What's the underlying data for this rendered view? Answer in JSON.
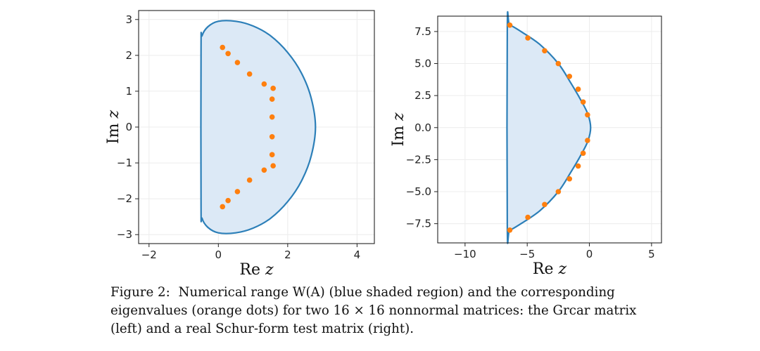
{
  "caption": {
    "label": "Figure 2:",
    "text": "Numerical range W(A) (blue shaded region) and the corresponding eigenvalues (orange dots) for two 16 × 16 nonnormal matrices: the Grcar matrix (left) and a real Schur-form test matrix (right)."
  },
  "colors": {
    "boundary": "#2c7fb8",
    "fill": "#dce9f6",
    "eigen": "#ff7f0e",
    "grid": "#ececec"
  },
  "chart_data": [
    {
      "type": "scatter",
      "title": "",
      "xlabel": "Re z",
      "ylabel": "Im z",
      "xlim": [
        -2.3,
        4.5
      ],
      "ylim": [
        -3.25,
        3.25
      ],
      "xticks": [
        -2,
        0,
        2,
        4
      ],
      "xtick_labels": [
        "−2",
        "0",
        "2",
        "4"
      ],
      "yticks": [
        -3,
        -2,
        -1,
        0,
        1,
        2,
        3
      ],
      "ytick_labels": [
        "−3",
        "−2",
        "−1",
        "0",
        "1",
        "2",
        "3"
      ],
      "grid": true,
      "series": [
        {
          "kind": "filled-boundary",
          "points": [
            [
              -0.5,
              2.2
            ],
            [
              -0.47,
              2.55
            ],
            [
              -0.3,
              2.8
            ],
            [
              0,
              2.95
            ],
            [
              0.5,
              2.95
            ],
            [
              1.0,
              2.82
            ],
            [
              1.5,
              2.55
            ],
            [
              2.0,
              2.08
            ],
            [
              2.4,
              1.5
            ],
            [
              2.68,
              0.8
            ],
            [
              2.8,
              0
            ],
            [
              2.68,
              -0.8
            ],
            [
              2.4,
              -1.5
            ],
            [
              2.0,
              -2.08
            ],
            [
              1.5,
              -2.55
            ],
            [
              1.0,
              -2.82
            ],
            [
              0.5,
              -2.95
            ],
            [
              0,
              -2.95
            ],
            [
              -0.3,
              -2.8
            ],
            [
              -0.47,
              -2.55
            ],
            [
              -0.5,
              -2.2
            ]
          ]
        },
        {
          "kind": "eigenvalues",
          "x": [
            0.12,
            0.28,
            0.55,
            0.9,
            1.32,
            1.58,
            1.55,
            1.55,
            1.55,
            1.55,
            1.58,
            1.32,
            0.9,
            0.55,
            0.28,
            0.12
          ],
          "y": [
            2.22,
            2.05,
            1.8,
            1.48,
            1.2,
            1.08,
            0.78,
            0.28,
            -0.27,
            -0.77,
            -1.08,
            -1.2,
            -1.48,
            -1.8,
            -2.05,
            -2.22
          ]
        }
      ]
    },
    {
      "type": "scatter",
      "title": "",
      "xlabel": "Re z",
      "ylabel": "Im z",
      "xlim": [
        -12.2,
        5.8
      ],
      "ylim": [
        -9.0,
        8.7
      ],
      "xticks": [
        -10,
        -5,
        0,
        5
      ],
      "xtick_labels": [
        "−10",
        "−5",
        "0",
        "5"
      ],
      "yticks": [
        -7.5,
        -5.0,
        -2.5,
        0.0,
        2.5,
        5.0,
        7.5
      ],
      "ytick_labels": [
        "−7.5",
        "−5.0",
        "−2.5",
        "0.0",
        "2.5",
        "5.0",
        "7.5"
      ],
      "grid": true,
      "series": [
        {
          "kind": "filled-boundary",
          "points": [
            [
              -6.4,
              8.0
            ],
            [
              -6.6,
              7.8
            ],
            [
              -6.6,
              -7.8
            ],
            [
              -6.4,
              -8.0
            ],
            [
              -5.5,
              -7.5
            ],
            [
              -4.0,
              -6.5
            ],
            [
              -2.5,
              -5.0
            ],
            [
              -1.5,
              -3.5
            ],
            [
              -0.6,
              -2.0
            ],
            [
              -0.1,
              -1.0
            ],
            [
              0.1,
              0
            ],
            [
              -0.1,
              1.0
            ],
            [
              -0.6,
              2.0
            ],
            [
              -1.5,
              3.5
            ],
            [
              -2.5,
              5.0
            ],
            [
              -4.0,
              6.5
            ],
            [
              -5.5,
              7.5
            ]
          ]
        },
        {
          "kind": "eigenvalues",
          "x": [
            -6.4,
            -4.95,
            -3.6,
            -2.5,
            -1.6,
            -0.9,
            -0.5,
            -0.15,
            -0.15,
            -0.5,
            -0.9,
            -1.6,
            -2.5,
            -3.6,
            -4.95,
            -6.4
          ],
          "y": [
            8.0,
            7.0,
            6.0,
            5.0,
            4.0,
            3.0,
            2.0,
            1.0,
            -1.0,
            -2.0,
            -3.0,
            -4.0,
            -5.0,
            -6.0,
            -7.0,
            -8.0
          ]
        }
      ]
    }
  ]
}
